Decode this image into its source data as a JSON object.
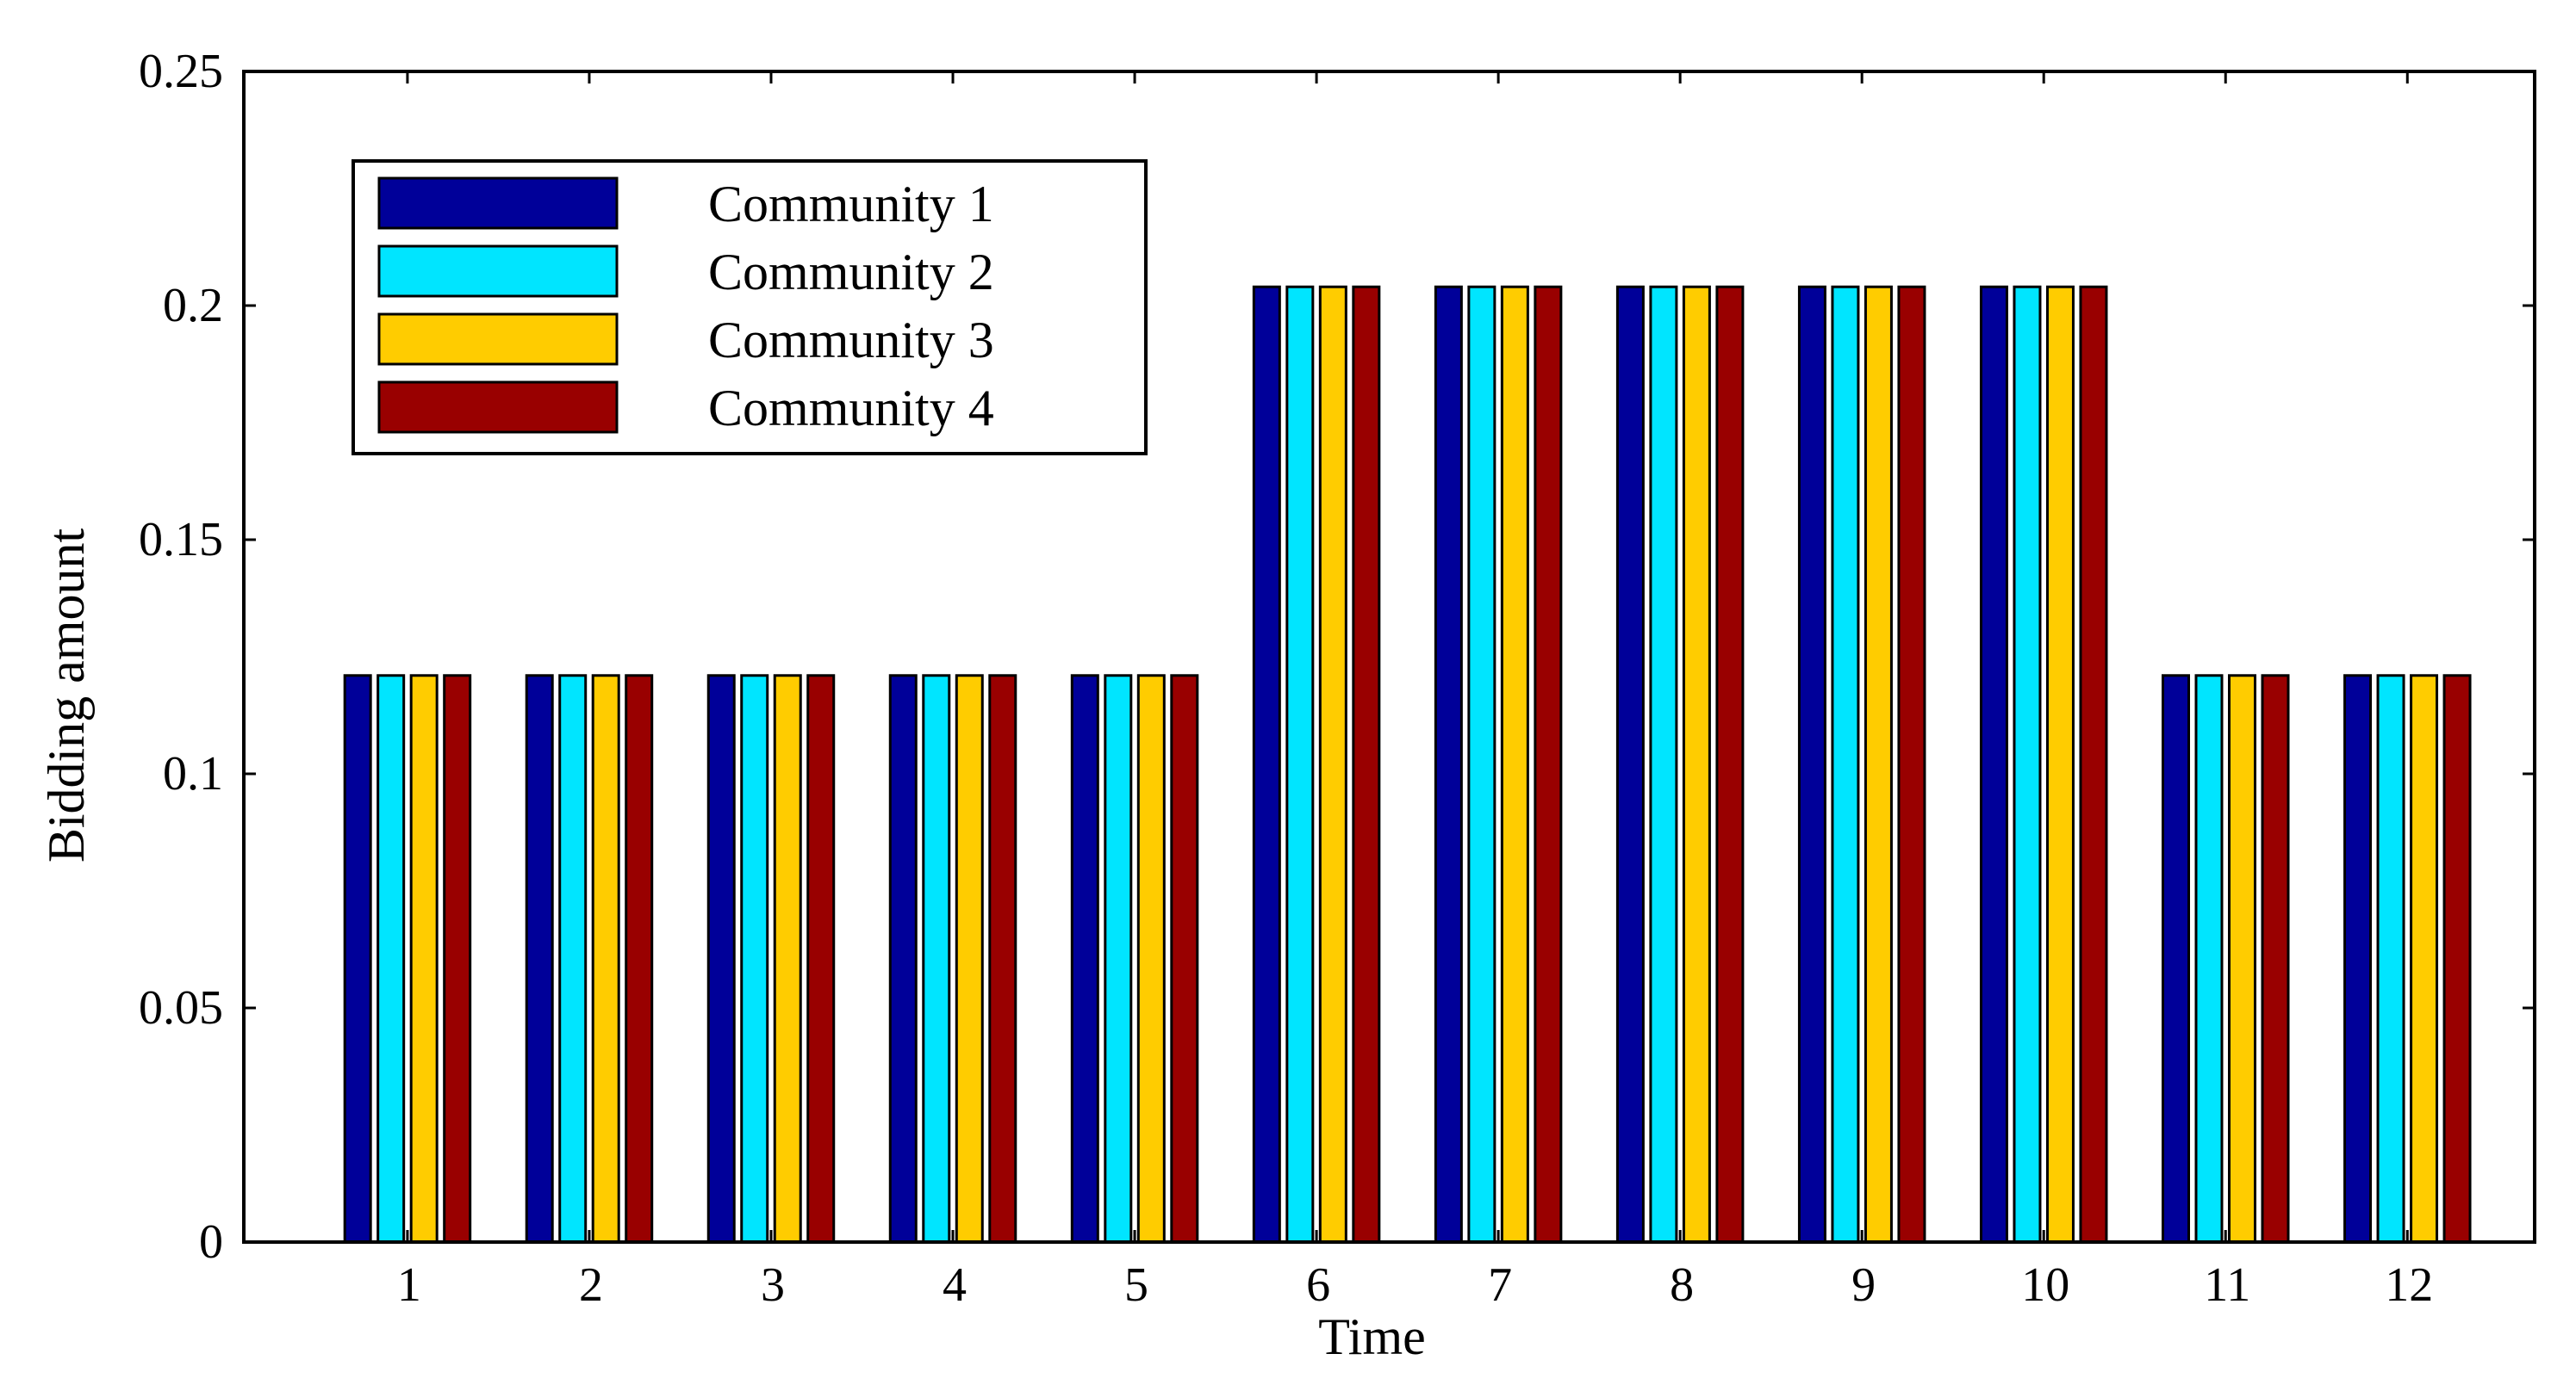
{
  "chart_data": {
    "type": "bar",
    "title": "",
    "xlabel": "Time",
    "ylabel": "Bidding amount",
    "ylim": [
      0,
      0.25
    ],
    "yticks": [
      "0",
      "0.05",
      "0.1",
      "0.15",
      "0.2",
      "0.25"
    ],
    "ytick_values": [
      0,
      0.05,
      0.1,
      0.15,
      0.2,
      0.25
    ],
    "categories": [
      "1",
      "2",
      "3",
      "4",
      "5",
      "6",
      "7",
      "8",
      "9",
      "10",
      "11",
      "12"
    ],
    "grid": false,
    "legend_position": "top-left",
    "series": [
      {
        "name": "Community 1",
        "color": "#000099",
        "values": [
          0.121,
          0.121,
          0.121,
          0.121,
          0.121,
          0.204,
          0.204,
          0.204,
          0.204,
          0.204,
          0.121,
          0.121
        ]
      },
      {
        "name": "Community 2",
        "color": "#00E5FF",
        "values": [
          0.121,
          0.121,
          0.121,
          0.121,
          0.121,
          0.204,
          0.204,
          0.204,
          0.204,
          0.204,
          0.121,
          0.121
        ]
      },
      {
        "name": "Community 3",
        "color": "#FFCC00",
        "values": [
          0.121,
          0.121,
          0.121,
          0.121,
          0.121,
          0.204,
          0.204,
          0.204,
          0.204,
          0.204,
          0.121,
          0.121
        ]
      },
      {
        "name": "Community 4",
        "color": "#990000",
        "values": [
          0.121,
          0.121,
          0.121,
          0.121,
          0.121,
          0.204,
          0.204,
          0.204,
          0.204,
          0.204,
          0.121,
          0.121
        ]
      }
    ]
  }
}
